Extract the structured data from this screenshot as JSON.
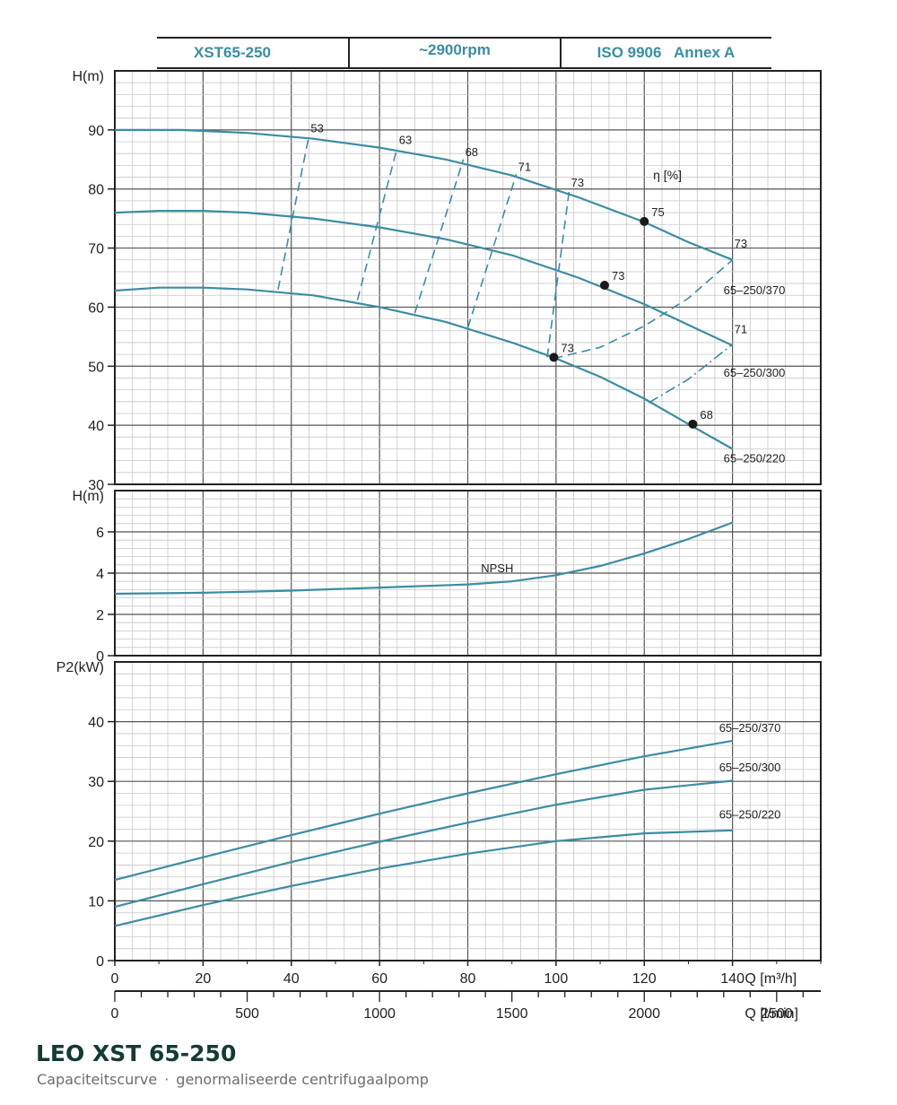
{
  "header": {
    "model": "XST65-250",
    "speed": "~2900rpm",
    "standard": "ISO 9906   Annex A"
  },
  "footer": {
    "title": "LEO XST 65-250",
    "subtitle_part1": "Capaciteitscurve",
    "separator": "·",
    "subtitle_part2": "genormaliseerde centrifugaalpomp"
  },
  "colors": {
    "curve": "#3a8da4",
    "grid_major": "#555555",
    "grid_minor": "#c8c8c8",
    "point": "#1a1a1a",
    "text": "#222222"
  },
  "chart_data": [
    {
      "type": "line",
      "panel": "head",
      "ylabel": "H(m)",
      "xlabel": "Q [m³/h]",
      "xlim": [
        0,
        160
      ],
      "ylim": [
        30,
        100
      ],
      "y_ticks": [
        30,
        40,
        50,
        60,
        70,
        80,
        90
      ],
      "grid": true,
      "series": [
        {
          "name": "65–250/370",
          "x": [
            0,
            15,
            30,
            45,
            60,
            75,
            90,
            105,
            120,
            130,
            140
          ],
          "y": [
            90.0,
            90.0,
            89.5,
            88.5,
            87.0,
            85.0,
            82.3,
            78.6,
            74.4,
            71.0,
            68.0
          ]
        },
        {
          "name": "65–250/300",
          "x": [
            0,
            10,
            20,
            30,
            45,
            60,
            75,
            90,
            105,
            120,
            130,
            140
          ],
          "y": [
            76.0,
            76.3,
            76.3,
            76.0,
            75.0,
            73.5,
            71.5,
            68.8,
            65.0,
            60.5,
            57.0,
            53.5
          ]
        },
        {
          "name": "65–250/220",
          "x": [
            0,
            10,
            20,
            30,
            45,
            60,
            75,
            90,
            100,
            110,
            120,
            130,
            140
          ],
          "y": [
            62.8,
            63.3,
            63.3,
            63.0,
            62.0,
            60.0,
            57.5,
            54.0,
            51.3,
            48.2,
            44.5,
            40.2,
            36.0
          ]
        }
      ],
      "efficiency_label": "η [%]",
      "efficiency_lines": [
        {
          "label": "53",
          "x": [
            37,
            44
          ],
          "y": [
            63.0,
            89.0
          ]
        },
        {
          "label": "63",
          "x": [
            55,
            64
          ],
          "y": [
            61.2,
            87.0
          ]
        },
        {
          "label": "68",
          "x": [
            68,
            79
          ],
          "y": [
            59.0,
            85.0
          ]
        },
        {
          "label": "71",
          "x": [
            80,
            91
          ],
          "y": [
            56.5,
            82.5
          ]
        },
        {
          "label": "73",
          "x": [
            98,
            103
          ],
          "y": [
            51.5,
            79.8
          ]
        }
      ],
      "iso_efficiency_73_upper": {
        "label": "73",
        "x": [
          99.5,
          110,
          120,
          130,
          140
        ],
        "y": [
          51.3,
          53.2,
          56.8,
          61.5,
          68.0
        ]
      },
      "iso_efficiency_71": {
        "label": "71",
        "x": [
          121,
          130,
          140
        ],
        "y": [
          43.8,
          47.8,
          53.7
        ]
      },
      "bep_points": [
        {
          "label": "75",
          "x": 120.0,
          "y": 74.5
        },
        {
          "label": "73",
          "x": 111.0,
          "y": 63.7
        },
        {
          "label": "73",
          "x": 99.5,
          "y": 51.5
        },
        {
          "label": "68",
          "x": 131.0,
          "y": 40.2
        }
      ],
      "end_labels": [
        "73",
        "71"
      ]
    },
    {
      "type": "line",
      "panel": "npsh",
      "ylabel": "H(m)",
      "xlim": [
        0,
        160
      ],
      "ylim": [
        0,
        8
      ],
      "y_ticks": [
        0,
        2,
        4,
        6
      ],
      "grid": true,
      "series": [
        {
          "name": "NPSH",
          "x": [
            0,
            20,
            40,
            60,
            80,
            90,
            100,
            110,
            120,
            130,
            140
          ],
          "y": [
            3.0,
            3.05,
            3.15,
            3.3,
            3.45,
            3.6,
            3.9,
            4.35,
            4.95,
            5.65,
            6.45
          ]
        }
      ]
    },
    {
      "type": "line",
      "panel": "power",
      "ylabel": "P2(kW)",
      "xlabel": "Q [m³/h]",
      "xlim": [
        0,
        160
      ],
      "ylim": [
        0,
        50
      ],
      "y_ticks": [
        0,
        10,
        20,
        30,
        40
      ],
      "x_ticks": [
        0,
        20,
        40,
        60,
        80,
        100,
        120,
        140
      ],
      "secondary_x_label": "Q [l/min]",
      "secondary_x_ticks": [
        0,
        500,
        1000,
        1500,
        2000,
        2500
      ],
      "grid": true,
      "series": [
        {
          "name": "65–250/370",
          "x": [
            0,
            20,
            40,
            60,
            80,
            100,
            120,
            140
          ],
          "y": [
            13.5,
            17.3,
            21.0,
            24.6,
            28.0,
            31.2,
            34.2,
            36.8
          ]
        },
        {
          "name": "65–250/300",
          "x": [
            0,
            20,
            40,
            60,
            80,
            100,
            120,
            140
          ],
          "y": [
            9.0,
            12.8,
            16.5,
            19.9,
            23.1,
            26.1,
            28.6,
            30.1
          ]
        },
        {
          "name": "65–250/220",
          "x": [
            0,
            20,
            40,
            60,
            80,
            100,
            120,
            140
          ],
          "y": [
            5.8,
            9.3,
            12.5,
            15.4,
            17.9,
            20.0,
            21.3,
            21.8
          ]
        }
      ]
    }
  ]
}
